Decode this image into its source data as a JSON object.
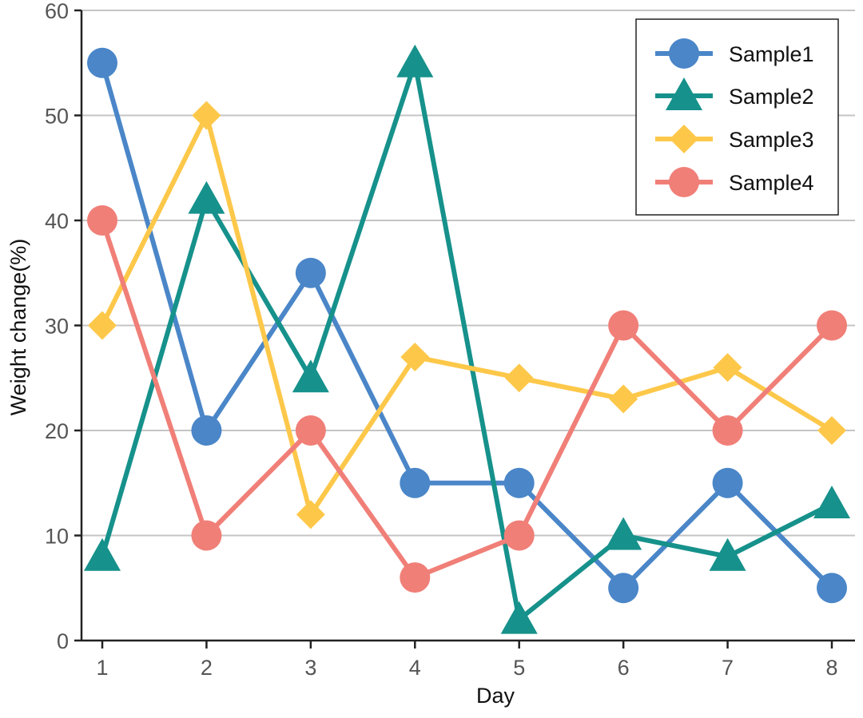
{
  "chart_data": {
    "type": "line",
    "title": "",
    "xlabel": "Day",
    "ylabel": "Weight change(%)",
    "x": [
      1,
      2,
      3,
      4,
      5,
      6,
      7,
      8
    ],
    "x_tick_labels": [
      "1",
      "2",
      "3",
      "4",
      "5",
      "6",
      "7",
      "8"
    ],
    "ylim": [
      0,
      60
    ],
    "y_ticks": [
      0,
      10,
      20,
      30,
      40,
      50,
      60
    ],
    "y_tick_labels": [
      "0",
      "10",
      "20",
      "30",
      "40",
      "50",
      "60"
    ],
    "grid": "horizontal",
    "legend_position": "top-right",
    "series": [
      {
        "name": "Sample1",
        "color": "#4a86c8",
        "marker": "circle",
        "values": [
          55,
          20,
          35,
          15,
          15,
          5,
          15,
          5
        ]
      },
      {
        "name": "Sample2",
        "color": "#16918b",
        "marker": "triangle",
        "values": [
          8,
          42,
          25,
          55,
          2,
          10,
          8,
          13
        ]
      },
      {
        "name": "Sample3",
        "color": "#fdc84a",
        "marker": "diamond",
        "values": [
          30,
          50,
          12,
          27,
          25,
          23,
          26,
          20
        ]
      },
      {
        "name": "Sample4",
        "color": "#f07f78",
        "marker": "circle",
        "values": [
          40,
          10,
          20,
          6,
          10,
          30,
          20,
          30
        ]
      }
    ]
  }
}
